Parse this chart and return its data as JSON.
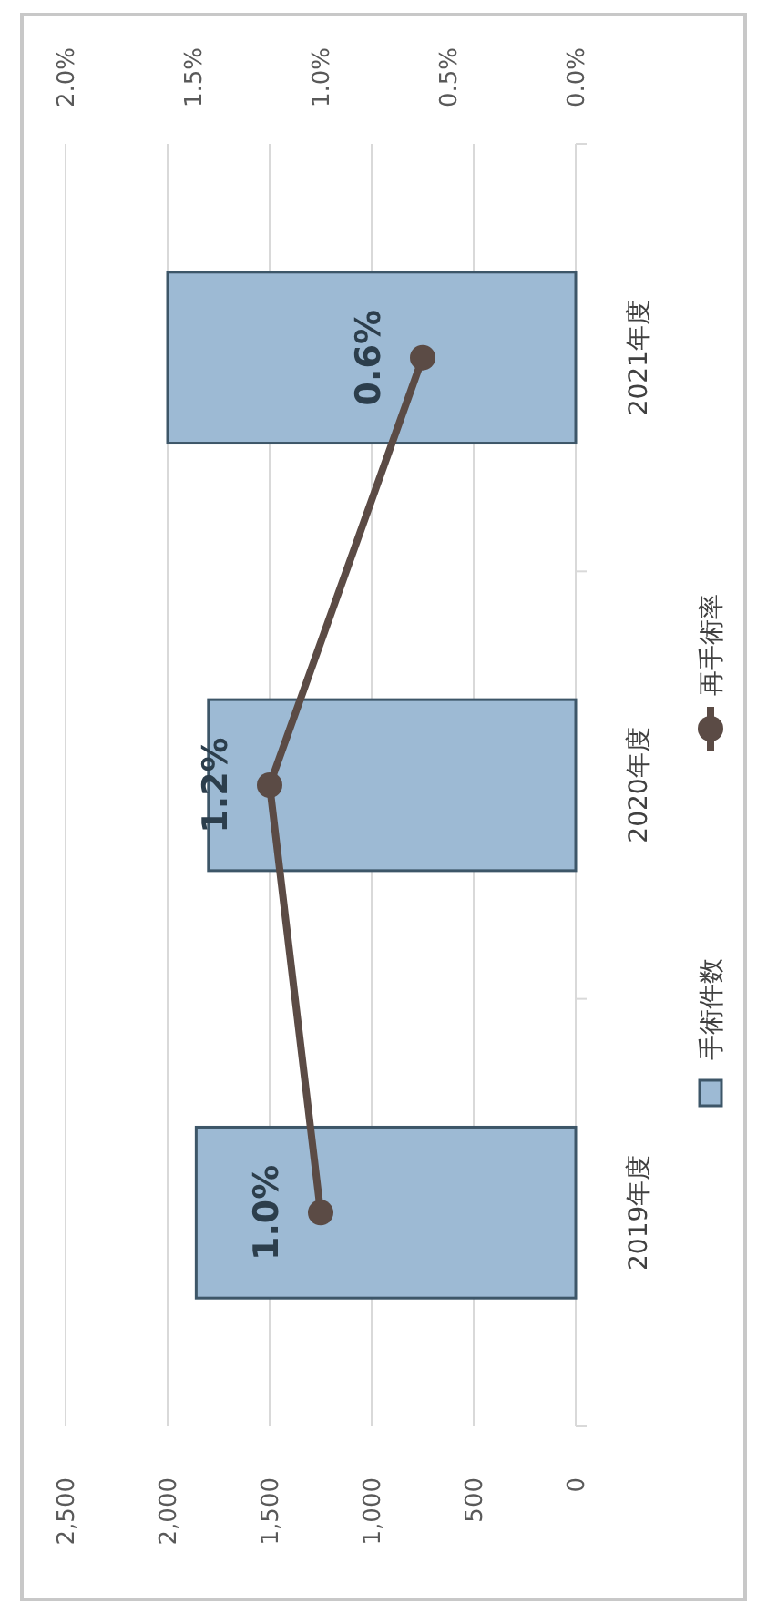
{
  "chart_data": {
    "type": "bar",
    "orientation": "horizontal",
    "categories": [
      "2021年度",
      "2020年度",
      "2019年度"
    ],
    "series": [
      {
        "name": "手術件数",
        "color": "#9dbad4",
        "values": [
          2000,
          1800,
          1860
        ]
      },
      {
        "name": "再手術率",
        "type": "line",
        "axis": "x2",
        "color": "#5b4b45",
        "values": [
          0.6,
          1.2,
          1.0
        ],
        "value_labels": [
          "0.6%",
          "1.2%",
          "1.0%"
        ]
      }
    ],
    "xlim": [
      2500,
      0
    ],
    "xticks": [
      {
        "value": 2500,
        "label": "2,500"
      },
      {
        "value": 2000,
        "label": "2,000"
      },
      {
        "value": 1500,
        "label": "1,500"
      },
      {
        "value": 1000,
        "label": "1,000"
      },
      500,
      0
    ],
    "x2lim": [
      2,
      0
    ],
    "x2ticks": [
      {
        "value": 2,
        "label": "2.0%"
      },
      {
        "value": 1.5,
        "label": "1.5%"
      },
      {
        "value": 1,
        "label": "1.0%"
      },
      {
        "value": 0.5,
        "label": "0.5%"
      },
      {
        "value": 0,
        "label": "0.0%"
      }
    ],
    "grid": "x",
    "legend": "right",
    "marker": "circle"
  }
}
